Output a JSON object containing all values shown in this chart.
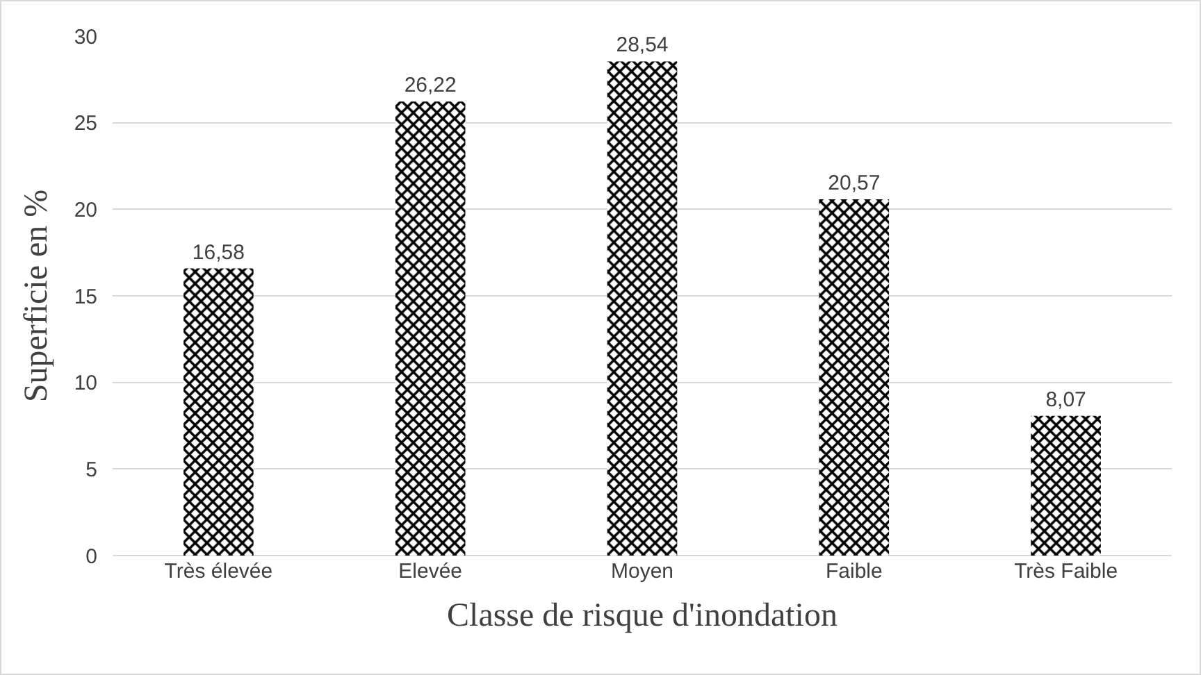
{
  "chart_data": {
    "type": "bar",
    "xlabel": "Classe de risque d'inondation",
    "ylabel": "Superficie en %",
    "categories": [
      "Très élevée",
      "Elevée",
      "Moyen",
      "Faible",
      "Très Faible"
    ],
    "values": [
      16.58,
      26.22,
      28.54,
      20.57,
      8.07
    ],
    "value_labels": [
      "16,58",
      "26,22",
      "28,54",
      "20,57",
      "8,07"
    ],
    "color": "#000000",
    "ylim": [
      0,
      30
    ],
    "yticks": [
      0,
      5,
      10,
      15,
      20,
      25,
      30
    ],
    "grid": "y"
  }
}
